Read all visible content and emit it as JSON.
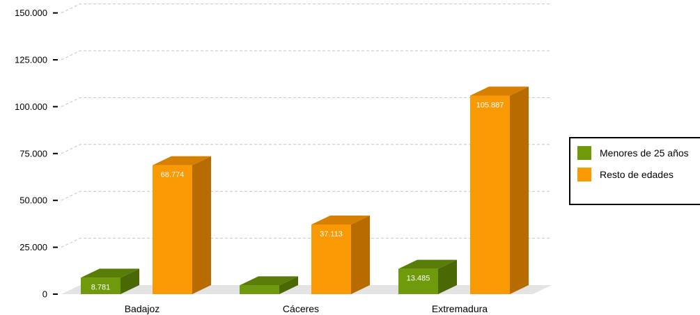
{
  "chart_data": {
    "type": "bar",
    "categories": [
      "Badajoz",
      "Cáceres",
      "Extremadura"
    ],
    "series": [
      {
        "name": "Menores de 25 años",
        "values": [
          8781,
          4704,
          13485
        ],
        "labels": [
          "8.781",
          "",
          "13.485"
        ],
        "color": "#6f9a0c",
        "color_top": "#5a7d07",
        "color_side": "#4a6905"
      },
      {
        "name": "Resto de edades",
        "values": [
          68774,
          37113,
          105887
        ],
        "labels": [
          "68.774",
          "37.113",
          "105.887"
        ],
        "color": "#f99a05",
        "color_top": "#d67f00",
        "color_side": "#b86c00"
      }
    ],
    "yticks": [
      0,
      25000,
      50000,
      75000,
      100000,
      125000,
      150000
    ],
    "ytick_labels": [
      "0",
      "25.000",
      "50.000",
      "75.000",
      "100.000",
      "125.000",
      "150.000"
    ],
    "ylim": [
      0,
      150000
    ],
    "grid": true,
    "legend_position": "right",
    "title": "",
    "xlabel": "",
    "ylabel": ""
  }
}
